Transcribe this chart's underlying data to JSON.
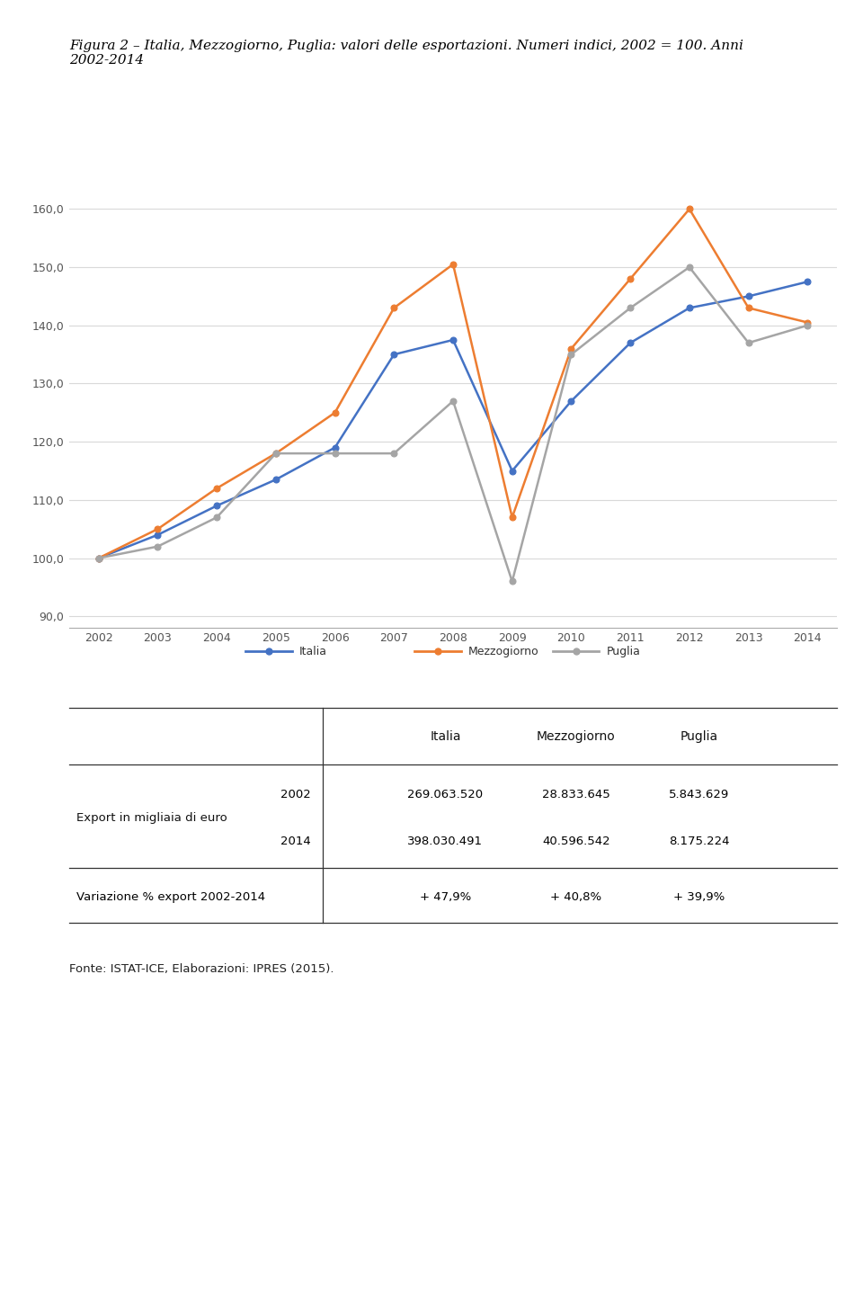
{
  "years": [
    2002,
    2003,
    2004,
    2005,
    2006,
    2007,
    2008,
    2009,
    2010,
    2011,
    2012,
    2013,
    2014
  ],
  "italia": [
    100.0,
    104.0,
    109.0,
    113.5,
    119.0,
    135.0,
    137.5,
    115.0,
    127.0,
    137.0,
    143.0,
    145.0,
    147.5
  ],
  "mezzogiorno": [
    100.0,
    105.0,
    112.0,
    118.0,
    125.0,
    143.0,
    150.5,
    107.0,
    136.0,
    148.0,
    160.0,
    143.0,
    140.5
  ],
  "puglia": [
    100.0,
    102.0,
    107.0,
    118.0,
    118.0,
    118.0,
    127.0,
    96.0,
    135.0,
    143.0,
    150.0,
    137.0,
    140.0
  ],
  "italia_color": "#4472C4",
  "mezzogiorno_color": "#ED7D31",
  "puglia_color": "#A5A5A5",
  "ylim": [
    88.0,
    166.0
  ],
  "yticks": [
    90.0,
    100.0,
    110.0,
    120.0,
    130.0,
    140.0,
    150.0,
    160.0
  ],
  "fig_title": "Figura 2 – Italia, Mezzogiorno, Puglia: valori delle esportazioni. Numeri indici, 2002 = 100. Anni\n2002-2014",
  "legend_labels": [
    "Italia",
    "Mezzogiorno",
    "Puglia"
  ],
  "table_data": [
    [
      "2002",
      "269.063.520",
      "28.833.645",
      "5.843.629"
    ],
    [
      "2014",
      "398.030.491",
      "40.596.542",
      "8.175.224"
    ]
  ],
  "table_row_label": "Export in migliaia di euro",
  "table_var_row": [
    "Variazione % export 2002-2014",
    "+ 47,9%",
    "+ 40,8%",
    "+ 39,9%"
  ],
  "table_header_cols": [
    "Italia",
    "Mezzogiorno",
    "Puglia"
  ],
  "fonte": "Fonte: ISTAT-ICE, Elaborazioni: IPRES (2015).",
  "background_color": "#FFFFFF",
  "grid_color": "#D9D9D9"
}
